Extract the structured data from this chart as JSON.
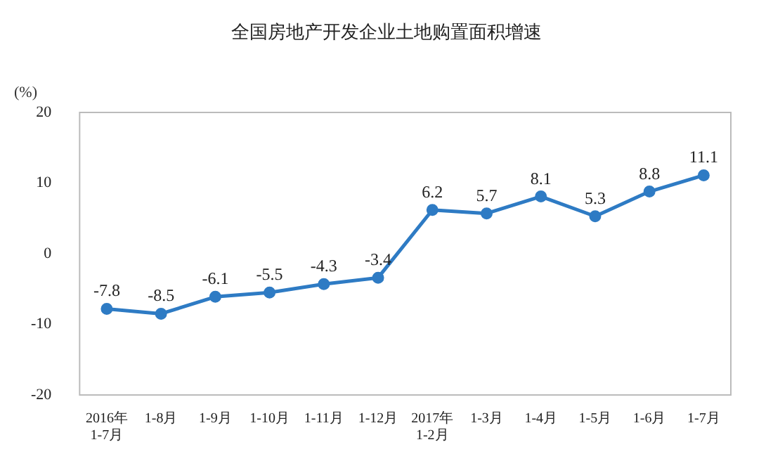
{
  "chart_data": {
    "type": "line",
    "title": "全国房地产开发企业土地购置面积增速",
    "ylabel": "(%)",
    "categories": [
      "2016年\n1-7月",
      "1-8月",
      "1-9月",
      "1-10月",
      "1-11月",
      "1-12月",
      "2017年\n1-2月",
      "1-3月",
      "1-4月",
      "1-5月",
      "1-6月",
      "1-7月"
    ],
    "series": [
      {
        "color": "#2e7bc4",
        "values": [
          -7.8,
          -8.5,
          -6.1,
          -5.5,
          -4.3,
          -3.4,
          6.2,
          5.7,
          8.1,
          5.3,
          8.8,
          11.1
        ]
      }
    ],
    "ylim": [
      -20,
      20
    ],
    "yticks": [
      -20,
      -10,
      0,
      10,
      20
    ],
    "grid": false,
    "legend": false,
    "marker": "circle",
    "line_style": "solid",
    "data_labels": true
  }
}
